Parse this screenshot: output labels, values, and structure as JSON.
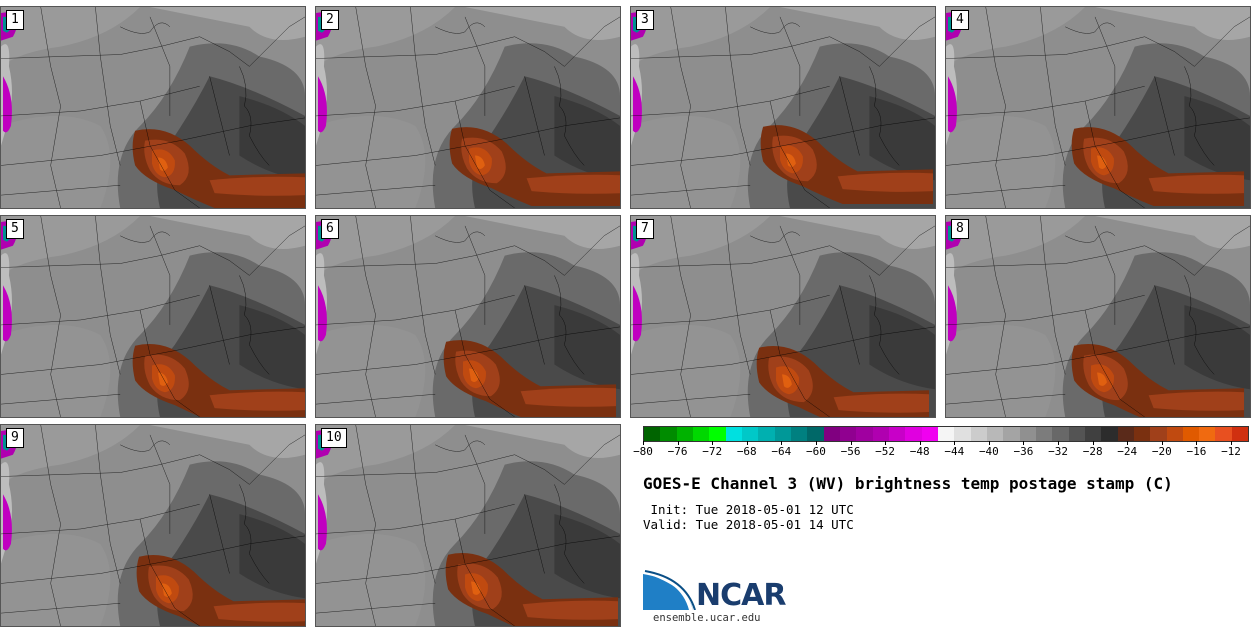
{
  "panels": [
    {
      "number": "1"
    },
    {
      "number": "2"
    },
    {
      "number": "3"
    },
    {
      "number": "4"
    },
    {
      "number": "5"
    },
    {
      "number": "6"
    },
    {
      "number": "7"
    },
    {
      "number": "8"
    },
    {
      "number": "9"
    },
    {
      "number": "10"
    }
  ],
  "colorbar": {
    "colors": [
      "#006400",
      "#008c00",
      "#00b200",
      "#00d800",
      "#00ff00",
      "#00e0e0",
      "#00c8c8",
      "#00b0b0",
      "#009898",
      "#008080",
      "#006868",
      "#800080",
      "#900090",
      "#a000a0",
      "#b000b0",
      "#c800c8",
      "#e000e0",
      "#f000f0",
      "#f5f5f5",
      "#e0e0e0",
      "#cccccc",
      "#b8b8b8",
      "#a4a4a4",
      "#909090",
      "#7c7c7c",
      "#686868",
      "#545454",
      "#404040",
      "#2c2c2c",
      "#5a2a1a",
      "#7a3010",
      "#a0401a",
      "#c04a10",
      "#e05a00",
      "#f06a10",
      "#e85020",
      "#d03010"
    ],
    "ticks": [
      "−80",
      "−76",
      "−72",
      "−68",
      "−64",
      "−60",
      "−56",
      "−52",
      "−48",
      "−44",
      "−40",
      "−36",
      "−32",
      "−28",
      "−24",
      "−20",
      "−16",
      "−12"
    ]
  },
  "title": "GOES-E Channel 3 (WV) brightness temp postage stamp (C)",
  "init_line": " Init: Tue 2018-05-01 12 UTC",
  "valid_line": "Valid: Tue 2018-05-01 14 UTC",
  "logo": {
    "name": "NCAR",
    "url": "ensemble.ucar.edu"
  }
}
